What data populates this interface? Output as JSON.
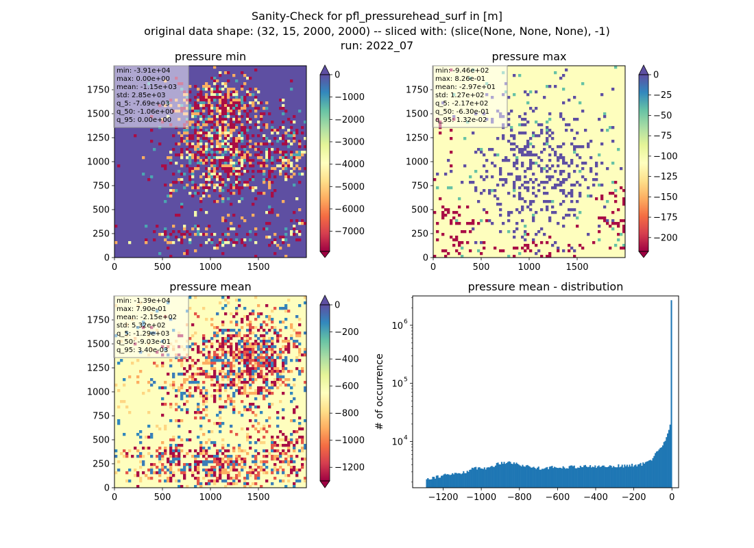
{
  "figure": {
    "title_line1": "Sanity-Check for pfl_pressurehead_surf in [m]",
    "title_line2": "original data shape: (32, 15, 2000, 2000) -- sliced with: (slice(None, None, None), -1)",
    "title_line3": "run: 2022_07"
  },
  "chart_data": [
    {
      "type": "heatmap",
      "title": "pressure min",
      "xlim": [
        0,
        2000
      ],
      "ylim": [
        0,
        2000
      ],
      "xticks": [
        "0",
        "500",
        "1000",
        "1500"
      ],
      "yticks": [
        "0",
        "250",
        "500",
        "750",
        "1000",
        "1250",
        "1500",
        "1750"
      ],
      "colorbar": {
        "cmap": "Spectral",
        "range": [
          -7900,
          0
        ],
        "ticks": [
          "0",
          "−1000",
          "−2000",
          "−3000",
          "−4000",
          "−5000",
          "−6000",
          "−7000"
        ],
        "tick_values": [
          0,
          -1000,
          -2000,
          -3000,
          -4000,
          -5000,
          -6000,
          -7000
        ],
        "extend": "both"
      },
      "stats": [
        "min: -3.91e+04",
        "max: 0.00e+00",
        "mean: -1.15e+03",
        "std: 2.85e+03",
        "q_5: -7.69e+03",
        "q_50: -1.06e+00",
        "q_95: 0.00e+00"
      ],
      "dominant_color": "#5e4fa2"
    },
    {
      "type": "heatmap",
      "title": "pressure max",
      "xlim": [
        0,
        2000
      ],
      "ylim": [
        0,
        2000
      ],
      "xticks": [
        "0",
        "500",
        "1000",
        "1500"
      ],
      "yticks": [
        "0",
        "250",
        "500",
        "750",
        "1000",
        "1250",
        "1500",
        "1750"
      ],
      "colorbar": {
        "cmap": "Spectral",
        "range": [
          -217,
          0
        ],
        "ticks": [
          "0",
          "−25",
          "−50",
          "−75",
          "−100",
          "−125",
          "−150",
          "−175",
          "−200"
        ],
        "tick_values": [
          0,
          -25,
          -50,
          -75,
          -100,
          -125,
          -150,
          -175,
          -200
        ],
        "extend": "both"
      },
      "stats": [
        "min: -9.46e+02",
        "max: 8.26e-01",
        "mean: -2.97e+01",
        "std: 1.27e+02",
        "q_5: -2.17e+02",
        "q_50: -6.30e-01",
        "q_95: 1.32e-02"
      ],
      "dominant_color": "#fefebe"
    },
    {
      "type": "heatmap",
      "title": "pressure mean",
      "xlim": [
        0,
        2000
      ],
      "ylim": [
        0,
        2000
      ],
      "xticks": [
        "0",
        "500",
        "1000",
        "1500"
      ],
      "yticks": [
        "0",
        "250",
        "500",
        "750",
        "1000",
        "1250",
        "1500",
        "1750"
      ],
      "colorbar": {
        "cmap": "Spectral",
        "range": [
          -1300,
          0
        ],
        "ticks": [
          "0",
          "−200",
          "−400",
          "−600",
          "−800",
          "−1000",
          "−1200"
        ],
        "tick_values": [
          0,
          -200,
          -400,
          -600,
          -800,
          -1000,
          -1200
        ],
        "extend": "both"
      },
      "stats": [
        "min: -1.39e+04",
        "max: 7.90e-01",
        "mean: -2.15e+02",
        "std: 5.32e+02",
        "q_5: -1.29e+03",
        "q_50: -9.03e-01",
        "q_95: 3.40e-03"
      ],
      "dominant_color": "#fefebe"
    },
    {
      "type": "bar",
      "title": "pressure mean - distribution",
      "ylabel": "# of occurrence",
      "xlabel": "",
      "yscale": "log",
      "xlim": [
        -1360,
        35
      ],
      "ylim": [
        1600,
        3200000
      ],
      "xticks": [
        "−1200",
        "−1000",
        "−800",
        "−600",
        "−400",
        "−200",
        "0"
      ],
      "xtick_values": [
        -1200,
        -1000,
        -800,
        -600,
        -400,
        -200,
        0
      ],
      "ytick_labels": [
        "10",
        "10",
        "10"
      ],
      "ytick_exponents": [
        "4",
        "5",
        "6"
      ],
      "ytick_values": [
        10000,
        100000,
        1000000
      ],
      "color": "#1f77b4",
      "bin_start": -1290,
      "bin_width": 6.45,
      "profile_x": [
        -1290,
        -1200,
        -1100,
        -1050,
        -1000,
        -980,
        -960,
        -900,
        -860,
        -800,
        -750,
        -700,
        -600,
        -500,
        -400,
        -300,
        -250,
        -200,
        -150,
        -120,
        -100,
        -80,
        -60,
        -40,
        -30,
        -20,
        -10,
        -6,
        -3,
        0
      ],
      "profile_y": [
        2300,
        2600,
        2900,
        3300,
        3700,
        3300,
        3600,
        4300,
        4500,
        4000,
        3700,
        3500,
        3600,
        3700,
        3700,
        3800,
        3800,
        3900,
        4100,
        4600,
        5200,
        6500,
        8000,
        9500,
        11500,
        15000,
        20000,
        25000,
        2700000,
        120000
      ]
    }
  ]
}
